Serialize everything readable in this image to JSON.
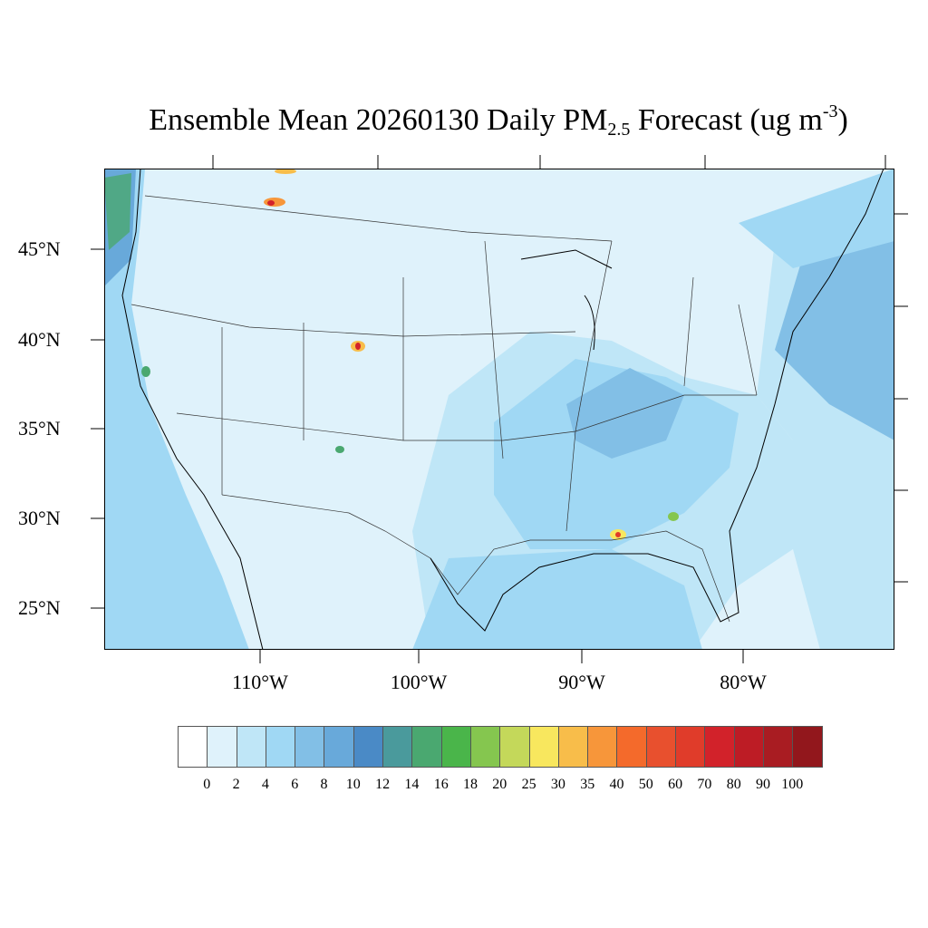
{
  "title": {
    "main": "Ensemble Mean 20260130 Daily PM",
    "subscript": "2.5",
    "units_prefix": " Forecast (ug m",
    "superscript": "-3",
    "units_suffix": ")"
  },
  "lat_labels": [
    "45°N",
    "40°N",
    "35°N",
    "30°N",
    "25°N"
  ],
  "lon_labels": [
    "110°W",
    "100°W",
    "90°W",
    "80°W"
  ],
  "colorbar": {
    "colors": [
      "#ffffff",
      "#dff2fb",
      "#bfe6f7",
      "#a0d8f4",
      "#82bfe6",
      "#68a9da",
      "#4a8ac6",
      "#4a9a9c",
      "#4aa870",
      "#4ab54a",
      "#85c64f",
      "#c4d85a",
      "#f8e75e",
      "#f8bd4a",
      "#f7963a",
      "#f46a2b",
      "#e8502e",
      "#e03c2a",
      "#d2222a",
      "#bd1c25",
      "#a91c22",
      "#92171c"
    ],
    "labels": [
      "0",
      "2",
      "4",
      "6",
      "8",
      "10",
      "12",
      "14",
      "16",
      "18",
      "20",
      "25",
      "30",
      "35",
      "40",
      "50",
      "60",
      "70",
      "80",
      "90",
      "100"
    ]
  }
}
